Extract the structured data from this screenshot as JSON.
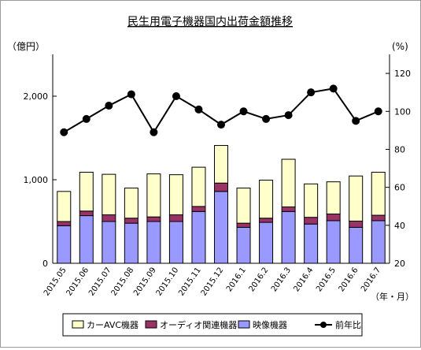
{
  "chart_data": {
    "type": "bar",
    "title": "民生用電子機器国内出荷金額推移",
    "ylabel_left": "（億円）",
    "ylabel_right": "(%)",
    "xlabel": "（年・月）",
    "categories": [
      "2015.05",
      "2015.06",
      "2015.07",
      "2015.08",
      "2015.09",
      "2015.10",
      "2015.11",
      "2015.12",
      "2016.1",
      "2016.2",
      "2016.3",
      "2016.4",
      "2016.5",
      "2016.6",
      "2016.7"
    ],
    "ylim_left": [
      0,
      2500
    ],
    "yticks_left": [
      0,
      1000,
      2000
    ],
    "ytick_labels_left": [
      "0",
      "1,000",
      "2,000"
    ],
    "ylim_right": [
      20,
      130
    ],
    "yticks_right": [
      20,
      40,
      60,
      80,
      100,
      120
    ],
    "stacked": true,
    "series": [
      {
        "name": "映像機器",
        "color": "#9999ff",
        "values": [
          450,
          570,
          500,
          480,
          500,
          500,
          620,
          860,
          430,
          490,
          620,
          470,
          510,
          430,
          510
        ]
      },
      {
        "name": "オーディオ関連機器",
        "color": "#993366",
        "values": [
          50,
          55,
          80,
          60,
          55,
          80,
          60,
          100,
          50,
          50,
          55,
          80,
          80,
          75,
          65
        ]
      },
      {
        "name": "カーAVC機器",
        "color": "#ffffcc",
        "values": [
          360,
          465,
          485,
          360,
          515,
          480,
          470,
          450,
          420,
          455,
          570,
          400,
          385,
          540,
          515
        ]
      }
    ],
    "line": {
      "name": "前年比",
      "axis": "right",
      "color": "#000000",
      "values": [
        89,
        96,
        103,
        109,
        89,
        108,
        101,
        93,
        100,
        96,
        98,
        110,
        112,
        95,
        100
      ]
    },
    "legend_position": "bottom",
    "legend_order": [
      "カーAVC機器",
      "オーディオ関連機器",
      "映像機器",
      "前年比"
    ],
    "grid": false
  }
}
